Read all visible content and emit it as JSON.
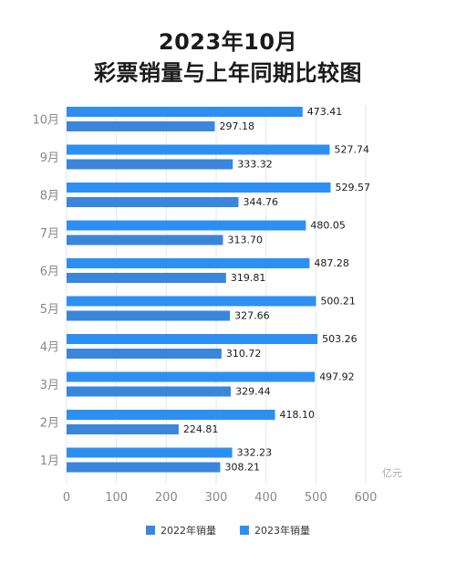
{
  "header": {
    "title_line1": "2023年10月",
    "title_line2": "彩票销量与上年同期比较图"
  },
  "colors": {
    "series_2022": "#3a86db",
    "series_2023": "#2e8ff2",
    "grid": "#e6e6e6"
  },
  "chart_data": {
    "type": "bar",
    "orientation": "horizontal",
    "title": "2023年10月 彩票销量与上年同期比较图",
    "unit": "亿元",
    "categories": [
      "10月",
      "9月",
      "8月",
      "7月",
      "6月",
      "5月",
      "4月",
      "3月",
      "2月",
      "1月"
    ],
    "series": [
      {
        "name": "2023年销量",
        "values": [
          473.41,
          527.74,
          529.57,
          480.05,
          487.28,
          500.21,
          503.26,
          497.92,
          418.1,
          332.23
        ]
      },
      {
        "name": "2022年销量",
        "values": [
          297.18,
          333.32,
          344.76,
          313.7,
          319.81,
          327.66,
          310.72,
          329.44,
          224.81,
          308.21
        ]
      }
    ],
    "value_labels": {
      "2023年销量": [
        "473.41",
        "527.74",
        "529.57",
        "480.05",
        "487.28",
        "500.21",
        "503.26",
        "497.92",
        "418.10",
        "332.23"
      ],
      "2022年销量": [
        "297.18",
        "333.32",
        "344.76",
        "313.70",
        "319.81",
        "327.66",
        "310.72",
        "329.44",
        "224.81",
        "308.21"
      ]
    },
    "xlim": [
      0,
      600
    ],
    "xticks": [
      "0",
      "100",
      "200",
      "300",
      "400",
      "500",
      "600"
    ],
    "grid": true,
    "legend_position": "bottom"
  },
  "legend": {
    "item_2022": "2022年销量",
    "item_2023": "2023年销量"
  }
}
